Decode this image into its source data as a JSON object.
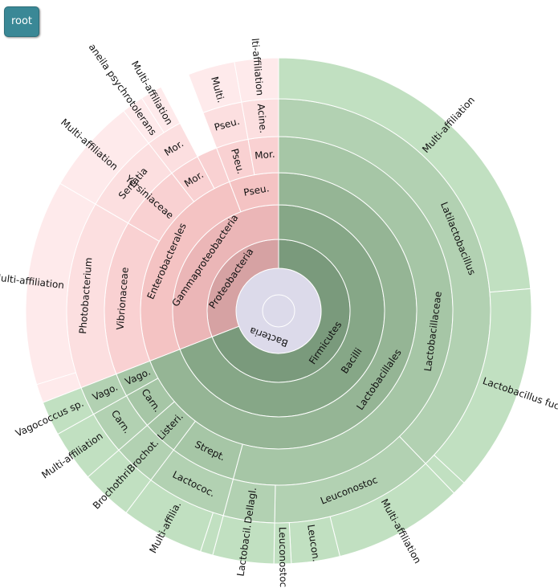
{
  "root_button": "root",
  "chart_data": {
    "type": "sunburst",
    "root": {
      "name": "Bacteria",
      "value": 100,
      "color": "#dcdaea",
      "children": [
        {
          "name": "Firmicutes",
          "value": 69.1,
          "colors": [
            "#7a9a7c",
            "#86a787",
            "#95b595",
            "#a6c6a6",
            "#b2d1b2",
            "#c1e0c1"
          ],
          "children": [
            {
              "name": "Bacilli",
              "value": 69.1,
              "children": [
                {
                  "name": "Lactobacillales",
                  "value": 69.1,
                  "children": [
                    {
                      "name": "Lactobacillaceae",
                      "value": 54.2,
                      "children": [
                        {
                          "name": "Latilactobacillus",
                          "value": 37.8,
                          "children": [
                            {
                              "name": "Multi-affiliation",
                              "value": 23.6
                            },
                            {
                              "name": "Lactobacillus fuchuensis",
                              "value": 13.3
                            },
                            {
                              "name": null,
                              "value": 0.9
                            }
                          ]
                        },
                        {
                          "name": "Leuconostoc",
                          "value": 12.5,
                          "children": [
                            {
                              "name": "Multi-affiliation",
                              "value": 8.3
                            },
                            {
                              "name": "Leucon.",
                              "value": 3.1
                            },
                            {
                              "name": "Leuconostoc",
                              "value": 1.1
                            }
                          ]
                        },
                        {
                          "name": "Dellagl.",
                          "value": 3.9,
                          "children": [
                            {
                              "name": "Lactobacil.",
                              "value": 3.9
                            }
                          ]
                        }
                      ]
                    },
                    {
                      "name": "Strept.",
                      "value": 6.1,
                      "children": [
                        {
                          "name": "Lactococ.",
                          "value": 6.1,
                          "children": [
                            {
                              "name": null,
                              "value": 0.8
                            },
                            {
                              "name": "Multi-affilia.",
                              "value": 5.3
                            }
                          ]
                        }
                      ]
                    },
                    {
                      "name": "Listeri.",
                      "value": 3.3,
                      "children": [
                        {
                          "name": "Brochot.",
                          "value": 3.3,
                          "children": [
                            {
                              "name": "Brochothri.",
                              "value": 3.3
                            }
                          ]
                        }
                      ]
                    },
                    {
                      "name": "Carn.",
                      "value": 3.3,
                      "children": [
                        {
                          "name": "Carn.",
                          "value": 3.3,
                          "children": [
                            {
                              "name": "Multi-affiliation",
                              "value": 3.3
                            }
                          ]
                        }
                      ]
                    },
                    {
                      "name": "Vago.",
                      "value": 2.2,
                      "children": [
                        {
                          "name": "Vago.",
                          "value": 2.2,
                          "children": [
                            {
                              "name": "Vagococcus sp.",
                              "value": 2.2
                            }
                          ]
                        }
                      ]
                    }
                  ]
                }
              ]
            }
          ]
        },
        {
          "name": "Proteobacteria",
          "value": 30.9,
          "colors": [
            "#d6a2a3",
            "#ebb6b7",
            "#f4c3c3",
            "#f9d1d2",
            "#fcdfe0",
            "#feeaeb"
          ],
          "children": [
            {
              "name": "Gammaproteobacteria",
              "value": 30.9,
              "children": [
                {
                  "name": "Enterobacterales",
                  "value": 25.1,
                  "children": [
                    {
                      "name": "Vibrionaceae",
                      "value": 14.3,
                      "children": [
                        {
                          "name": "Photobacterium",
                          "value": 14.3,
                          "children": [
                            {
                              "name": null,
                              "value": 1.2
                            },
                            {
                              "name": "Multi-affiliation",
                              "value": 13.1
                            }
                          ]
                        }
                      ]
                    },
                    {
                      "name": "Yersiniaceae",
                      "value": 6.1,
                      "children": [
                        {
                          "name": "Serratia",
                          "value": 6.1,
                          "children": [
                            {
                              "name": "Multi-affiliation",
                              "value": 6.1
                            }
                          ]
                        }
                      ]
                    },
                    {
                      "name": "Mor.",
                      "value": 2.8,
                      "children": [
                        {
                          "name": "Mor.",
                          "value": 2.8,
                          "children": [
                            {
                              "name": "aneila psychrotolerans",
                              "value": 1.4
                            },
                            {
                              "name": "Multi-affiliation",
                              "value": 1.4
                            }
                          ]
                        }
                      ]
                    },
                    {
                      "name": null,
                      "value": 1.9
                    }
                  ]
                },
                {
                  "name": "Pseu.",
                  "value": 5.8,
                  "children": [
                    {
                      "name": "Pseu.",
                      "value": 3.0,
                      "children": [
                        {
                          "name": "Pseu.",
                          "value": 3.0,
                          "children": [
                            {
                              "name": "Multi.",
                              "value": 3.0
                            }
                          ]
                        }
                      ]
                    },
                    {
                      "name": "Mor.",
                      "value": 2.8,
                      "children": [
                        {
                          "name": "Acine.",
                          "value": 2.8,
                          "children": [
                            {
                              "name": "lti-affiliation",
                              "value": 2.8
                            }
                          ]
                        }
                      ]
                    }
                  ]
                }
              ]
            }
          ]
        }
      ]
    }
  }
}
